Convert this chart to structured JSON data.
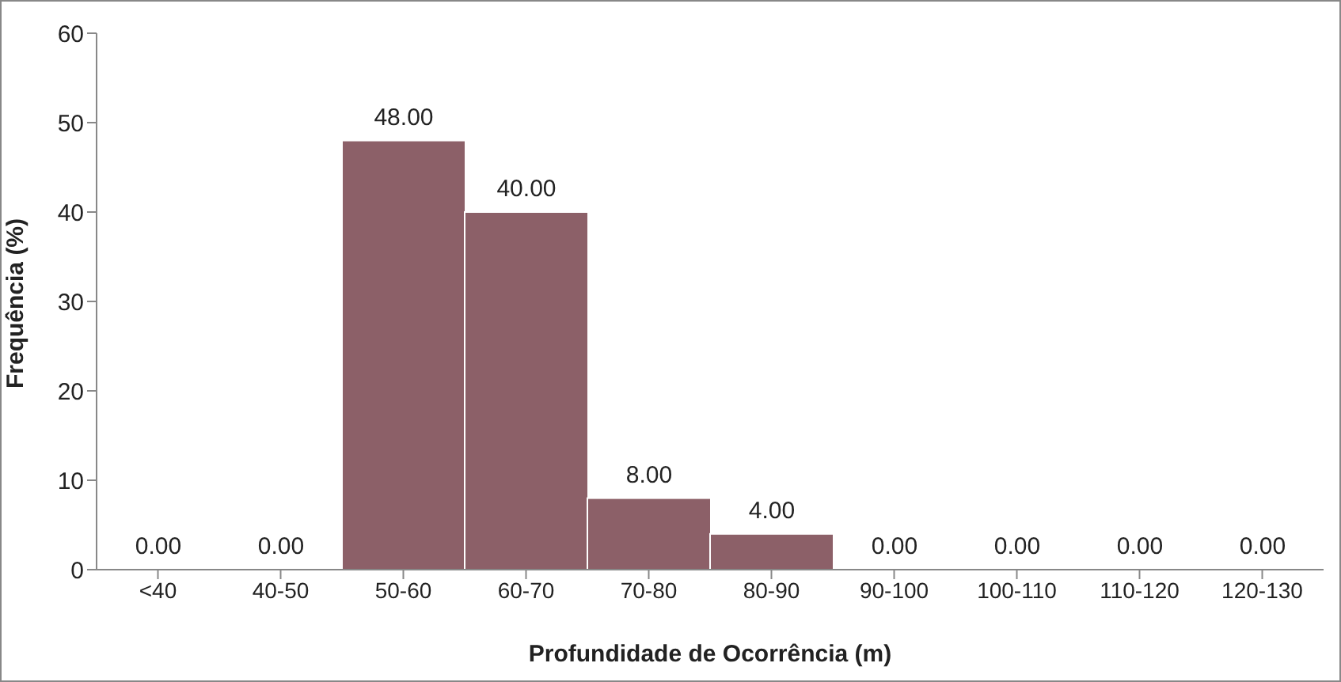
{
  "chart_data": {
    "type": "bar",
    "xlabel": "Profundidade de  Ocorrência (m)",
    "ylabel": "Frequência (%)",
    "categories": [
      "<40",
      "40-50",
      "50-60",
      "60-70",
      "70-80",
      "80-90",
      "90-100",
      "100-110",
      "110-120",
      "120-130"
    ],
    "values": [
      0,
      0,
      48,
      40,
      8,
      4,
      0,
      0,
      0,
      0
    ],
    "value_labels": [
      "0.00",
      "0.00",
      "48.00",
      "40.00",
      "8.00",
      "4.00",
      "0.00",
      "0.00",
      "0.00",
      "0.00"
    ],
    "color": "#8c6068",
    "ylim": [
      0,
      60
    ],
    "yticks": [
      0,
      10,
      20,
      30,
      40,
      50,
      60
    ],
    "grid": false,
    "legend": false
  }
}
